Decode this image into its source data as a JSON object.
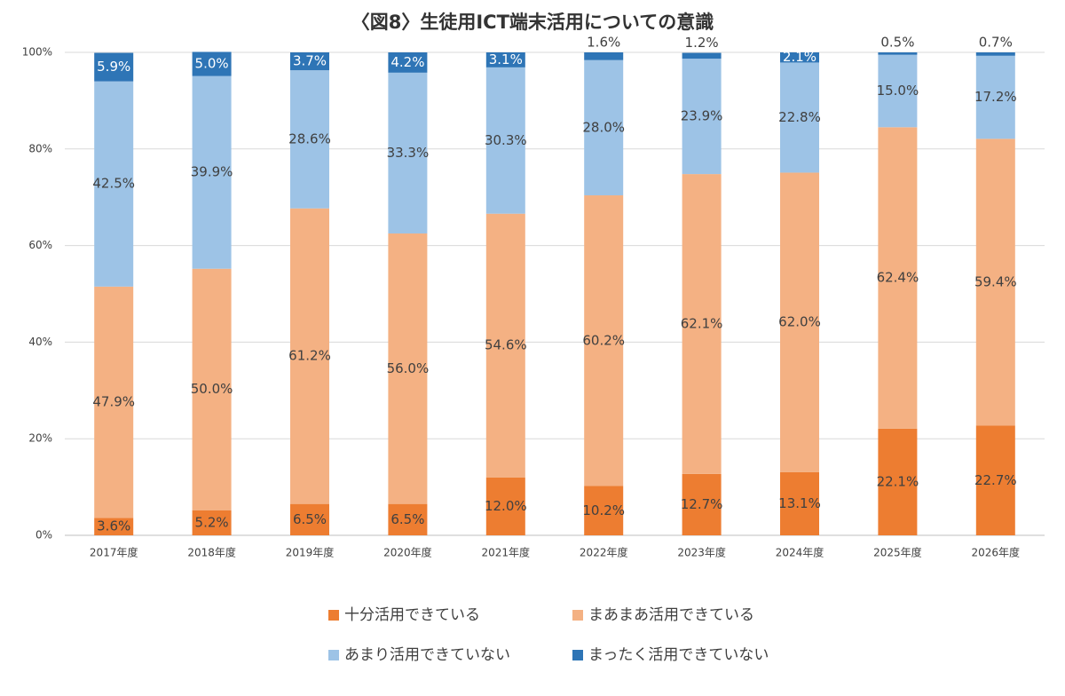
{
  "chart_data": {
    "type": "stacked_bar",
    "title": "〈図8〉生徒用ICT端末活用についての意識",
    "categories": [
      "2017年度",
      "2018年度",
      "2019年度",
      "2020年度",
      "2021年度",
      "2022年度",
      "2023年度",
      "2024年度",
      "2025年度",
      "2026年度"
    ],
    "series": [
      {
        "name": "十分活用できている",
        "color": "#ed7d31",
        "values": [
          3.6,
          5.2,
          6.5,
          6.5,
          12.0,
          10.2,
          12.7,
          13.1,
          22.1,
          22.7
        ],
        "value_labels": [
          "3.6%",
          "5.2%",
          "6.5%",
          "6.5%",
          "12.0%",
          "10.2%",
          "12.7%",
          "13.1%",
          "22.1%",
          "22.7%"
        ]
      },
      {
        "name": "まあまあ活用できている",
        "color": "#f4b183",
        "values": [
          47.9,
          50.0,
          61.2,
          56.0,
          54.6,
          60.2,
          62.1,
          62.0,
          62.4,
          59.4
        ],
        "value_labels": [
          "47.9%",
          "50.0%",
          "61.2%",
          "56.0%",
          "54.6%",
          "60.2%",
          "62.1%",
          "62.0%",
          "62.4%",
          "59.4%"
        ]
      },
      {
        "name": "あまり活用できていない",
        "color": "#9dc3e6",
        "values": [
          42.5,
          39.9,
          28.6,
          33.3,
          30.3,
          28.0,
          23.9,
          22.8,
          15.0,
          17.2
        ],
        "value_labels": [
          "42.5%",
          "39.9%",
          "28.6%",
          "33.3%",
          "30.3%",
          "28.0%",
          "23.9%",
          "22.8%",
          "15.0%",
          "17.2%"
        ]
      },
      {
        "name": "まったく活用できていない",
        "color": "#2e75b6",
        "values": [
          5.9,
          5.0,
          3.7,
          4.2,
          3.1,
          1.6,
          1.2,
          2.1,
          0.5,
          0.7
        ],
        "value_labels": [
          "5.9%",
          "5.0%",
          "3.7%",
          "4.2%",
          "3.1%",
          "1.6%",
          "1.2%",
          "2.1%",
          "0.5%",
          "0.7%"
        ]
      }
    ],
    "ylim": [
      0,
      100
    ],
    "yticks": [
      {
        "value": 0,
        "label": "0%"
      },
      {
        "value": 20,
        "label": "20%"
      },
      {
        "value": 40,
        "label": "40%"
      },
      {
        "value": 60,
        "label": "60%"
      },
      {
        "value": 80,
        "label": "80%"
      },
      {
        "value": 100,
        "label": "100%"
      }
    ],
    "grid": true
  }
}
